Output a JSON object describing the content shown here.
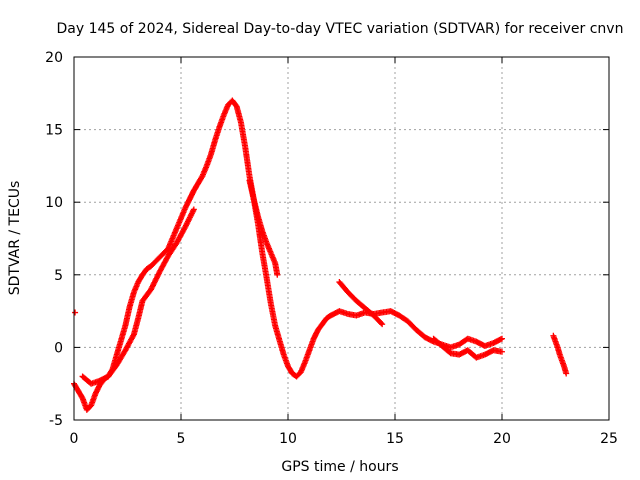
{
  "chart_data": {
    "type": "scatter",
    "title": "Day 145 of 2024, Sidereal Day-to-day VTEC variation (SDTVAR) for receiver cnvn",
    "xlabel": "GPS time / hours",
    "ylabel": "SDTVAR / TECUs",
    "xlim": [
      0,
      25
    ],
    "ylim": [
      -5,
      20
    ],
    "xticks": [
      0,
      5,
      10,
      15,
      20,
      25
    ],
    "yticks": [
      -5,
      0,
      5,
      10,
      15,
      20
    ],
    "grid": true,
    "marker": "+",
    "color": "#ff0000",
    "series": [
      {
        "name": "main-trace",
        "x": [
          0.0,
          0.2,
          0.4,
          0.6,
          0.8,
          1.0,
          1.2,
          1.4,
          1.6,
          1.8,
          2.0,
          2.2,
          2.4,
          2.6,
          2.8,
          3.0,
          3.2,
          3.4,
          3.6,
          3.8,
          4.0,
          4.2,
          4.4,
          4.6,
          4.8,
          5.0,
          5.2,
          5.4,
          5.6,
          5.8,
          6.0,
          6.2,
          6.4,
          6.6,
          6.8,
          7.0,
          7.2,
          7.4,
          7.6,
          7.8,
          8.0,
          8.2,
          8.4,
          8.6,
          8.8,
          9.0,
          9.2,
          9.4,
          9.6,
          9.8,
          10.0,
          10.2,
          10.4,
          10.6,
          10.8,
          11.0,
          11.2,
          11.4,
          11.6,
          11.8,
          12.0,
          12.4,
          12.8,
          13.2,
          13.6,
          14.0,
          14.4,
          14.8,
          15.2,
          15.6,
          16.0,
          16.4,
          16.8,
          17.2,
          17.6,
          18.0,
          18.4,
          18.8,
          19.2,
          19.6,
          20.0
        ],
        "y": [
          -2.5,
          -3.0,
          -3.5,
          -4.3,
          -4.0,
          -3.2,
          -2.6,
          -2.2,
          -2.0,
          -1.5,
          -0.5,
          0.5,
          1.5,
          2.8,
          3.8,
          4.5,
          5.0,
          5.4,
          5.6,
          5.9,
          6.2,
          6.5,
          6.8,
          7.5,
          8.2,
          8.9,
          9.6,
          10.2,
          10.8,
          11.3,
          11.8,
          12.5,
          13.3,
          14.3,
          15.2,
          16.0,
          16.7,
          17.0,
          16.6,
          15.5,
          13.8,
          11.8,
          10.2,
          8.5,
          6.5,
          4.8,
          3.0,
          1.5,
          0.5,
          -0.5,
          -1.3,
          -1.8,
          -2.0,
          -1.7,
          -1.0,
          -0.2,
          0.6,
          1.2,
          1.6,
          2.0,
          2.2,
          2.5,
          2.3,
          2.2,
          2.4,
          2.3,
          2.4,
          2.5,
          2.2,
          1.8,
          1.2,
          0.7,
          0.4,
          0.2,
          0.0,
          0.2,
          0.6,
          0.4,
          0.1,
          0.3,
          0.6
        ]
      },
      {
        "name": "secondary-trace",
        "x": [
          0.4,
          0.8,
          1.2,
          1.6,
          2.0,
          2.4,
          2.8,
          3.0,
          3.2,
          3.6,
          4.0,
          4.4,
          4.8,
          5.2,
          5.6
        ],
        "y": [
          -2.0,
          -2.5,
          -2.3,
          -2.0,
          -1.2,
          -0.2,
          0.9,
          2.0,
          3.2,
          4.0,
          5.2,
          6.3,
          7.2,
          8.3,
          9.5
        ]
      },
      {
        "name": "spike-branch",
        "x": [
          8.2,
          8.4,
          8.6,
          8.8,
          9.0,
          9.2,
          9.4,
          9.5
        ],
        "y": [
          11.5,
          10.2,
          9.0,
          8.0,
          7.2,
          6.5,
          5.8,
          5.0
        ]
      },
      {
        "name": "mid-arc-branch",
        "x": [
          12.4,
          12.8,
          13.2,
          13.6,
          14.0,
          14.2,
          14.4
        ],
        "y": [
          4.5,
          3.8,
          3.2,
          2.7,
          2.2,
          1.9,
          1.6
        ]
      },
      {
        "name": "low-branch",
        "x": [
          16.8,
          17.2,
          17.6,
          18.0,
          18.4,
          18.8,
          19.2,
          19.6,
          20.0
        ],
        "y": [
          0.6,
          0.1,
          -0.4,
          -0.5,
          -0.2,
          -0.7,
          -0.5,
          -0.2,
          -0.3
        ]
      },
      {
        "name": "late-segment",
        "x": [
          22.4,
          22.5,
          22.6,
          22.7,
          22.8,
          22.9,
          23.0
        ],
        "y": [
          0.8,
          0.4,
          0.0,
          -0.5,
          -0.9,
          -1.3,
          -1.8
        ]
      },
      {
        "name": "outlier",
        "x": [
          0.05
        ],
        "y": [
          2.4
        ]
      }
    ]
  }
}
